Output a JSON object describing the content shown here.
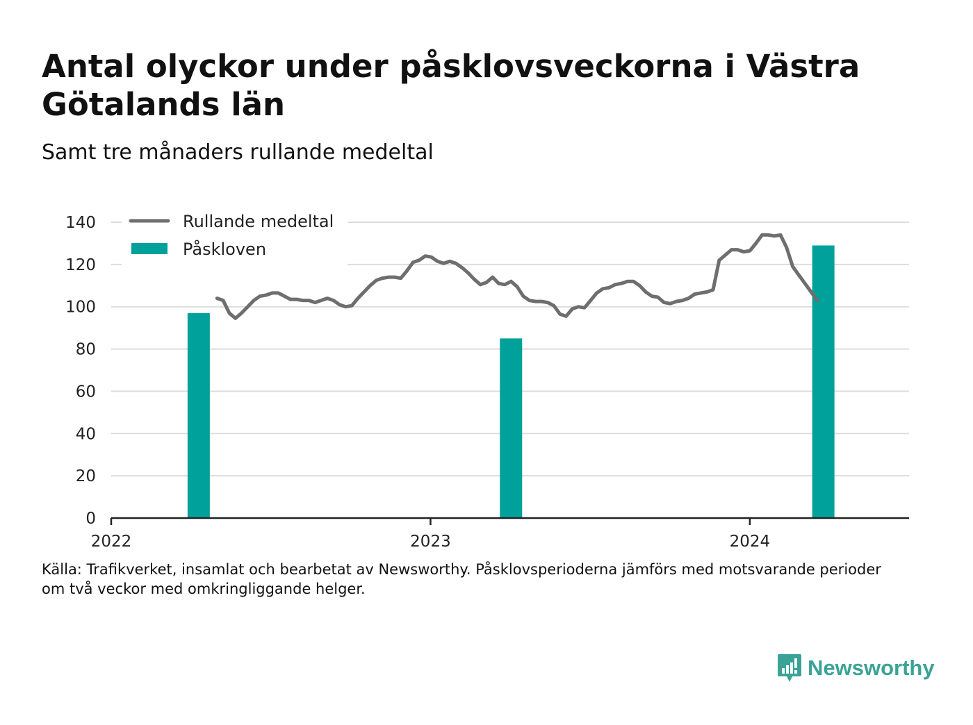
{
  "title": "Antal olyckor under påsklovsveckorna i Västra Götalands län",
  "subtitle": "Samt tre månaders rullande medeltal",
  "source": {
    "line1": "Källa: Trafikverket, insamlat och bearbetat av Newsworthy. Påsklovsperioderna jämförs med motsvarande perioder",
    "line2": "om två veckor med omkringliggande helger."
  },
  "logo": {
    "text": "Newsworthy",
    "icon": "newsworthy-logo-icon"
  },
  "colors": {
    "line": "#6e6e6e",
    "bar": "#00a19a",
    "grid": "#dddddd",
    "axis": "#222222",
    "brand": "#3aa396"
  },
  "chart_data": {
    "type": "bar+line",
    "title": "Antal olyckor under påsklovsveckorna i Västra Götalands län",
    "subtitle": "Samt tre månaders rullande medeltal",
    "xlabel": "",
    "ylabel": "",
    "ylim": [
      0,
      140
    ],
    "yticks": [
      0,
      20,
      40,
      60,
      80,
      100,
      120,
      140
    ],
    "xticks": [
      {
        "label": "2022",
        "x": "2022-01-01"
      },
      {
        "label": "2023",
        "x": "2023-01-01"
      },
      {
        "label": "2024",
        "x": "2024-01-01"
      }
    ],
    "grid": true,
    "legend": {
      "placement": "top-left",
      "entries": [
        {
          "label": "Rullande medeltal",
          "kind": "line"
        },
        {
          "label": "Påskloven",
          "kind": "bar"
        }
      ]
    },
    "bars": {
      "name": "Påskloven",
      "points": [
        {
          "x": "2022-04-11",
          "value": 97
        },
        {
          "x": "2023-04-03",
          "value": 85
        },
        {
          "x": "2024-03-25",
          "value": 129
        }
      ]
    },
    "line": {
      "name": "Rullande medeltal",
      "points": [
        [
          "2022-05-02",
          104
        ],
        [
          "2022-05-09",
          103
        ],
        [
          "2022-05-16",
          97
        ],
        [
          "2022-05-23",
          94.5
        ],
        [
          "2022-05-30",
          97
        ],
        [
          "2022-06-06",
          100
        ],
        [
          "2022-06-13",
          103
        ],
        [
          "2022-06-20",
          105
        ],
        [
          "2022-06-27",
          105.5
        ],
        [
          "2022-07-04",
          106.5
        ],
        [
          "2022-07-11",
          106.5
        ],
        [
          "2022-07-18",
          105
        ],
        [
          "2022-07-25",
          103.5
        ],
        [
          "2022-08-01",
          103.5
        ],
        [
          "2022-08-08",
          103
        ],
        [
          "2022-08-15",
          103
        ],
        [
          "2022-08-22",
          102
        ],
        [
          "2022-08-29",
          103
        ],
        [
          "2022-09-05",
          104
        ],
        [
          "2022-09-12",
          103
        ],
        [
          "2022-09-19",
          101
        ],
        [
          "2022-09-26",
          100
        ],
        [
          "2022-10-03",
          100.5
        ],
        [
          "2022-10-10",
          104
        ],
        [
          "2022-10-17",
          107
        ],
        [
          "2022-10-24",
          110
        ],
        [
          "2022-10-31",
          112.5
        ],
        [
          "2022-11-07",
          113.5
        ],
        [
          "2022-11-14",
          114
        ],
        [
          "2022-11-21",
          114
        ],
        [
          "2022-11-28",
          113.5
        ],
        [
          "2022-12-05",
          117
        ],
        [
          "2022-12-12",
          121
        ],
        [
          "2022-12-19",
          122
        ],
        [
          "2022-12-26",
          124
        ],
        [
          "2023-01-02",
          123.5
        ],
        [
          "2023-01-09",
          121.5
        ],
        [
          "2023-01-16",
          120.5
        ],
        [
          "2023-01-23",
          121.5
        ],
        [
          "2023-01-30",
          120.5
        ],
        [
          "2023-02-06",
          118.5
        ],
        [
          "2023-02-13",
          116
        ],
        [
          "2023-02-20",
          113
        ],
        [
          "2023-02-27",
          110.5
        ],
        [
          "2023-03-06",
          111.5
        ],
        [
          "2023-03-13",
          114
        ],
        [
          "2023-03-20",
          111
        ],
        [
          "2023-03-27",
          110.5
        ],
        [
          "2023-04-03",
          112
        ],
        [
          "2023-04-10",
          109.5
        ],
        [
          "2023-04-17",
          105
        ],
        [
          "2023-04-24",
          103
        ],
        [
          "2023-05-01",
          102.5
        ],
        [
          "2023-05-08",
          102.5
        ],
        [
          "2023-05-15",
          102
        ],
        [
          "2023-05-22",
          100.5
        ],
        [
          "2023-05-29",
          96.5
        ],
        [
          "2023-06-05",
          95.5
        ],
        [
          "2023-06-12",
          99
        ],
        [
          "2023-06-19",
          100
        ],
        [
          "2023-06-26",
          99.5
        ],
        [
          "2023-07-03",
          103
        ],
        [
          "2023-07-10",
          106.5
        ],
        [
          "2023-07-17",
          108.5
        ],
        [
          "2023-07-24",
          109
        ],
        [
          "2023-07-31",
          110.5
        ],
        [
          "2023-08-07",
          111
        ],
        [
          "2023-08-14",
          112
        ],
        [
          "2023-08-21",
          112
        ],
        [
          "2023-08-28",
          110
        ],
        [
          "2023-09-04",
          107
        ],
        [
          "2023-09-11",
          105
        ],
        [
          "2023-09-18",
          104.5
        ],
        [
          "2023-09-25",
          102
        ],
        [
          "2023-10-02",
          101.5
        ],
        [
          "2023-10-09",
          102.5
        ],
        [
          "2023-10-16",
          103
        ],
        [
          "2023-10-23",
          104
        ],
        [
          "2023-10-30",
          106
        ],
        [
          "2023-11-06",
          106.5
        ],
        [
          "2023-11-13",
          107
        ],
        [
          "2023-11-20",
          108
        ],
        [
          "2023-11-27",
          122
        ],
        [
          "2023-12-04",
          124.5
        ],
        [
          "2023-12-11",
          127
        ],
        [
          "2023-12-18",
          127
        ],
        [
          "2023-12-25",
          126
        ],
        [
          "2024-01-01",
          126.5
        ],
        [
          "2024-01-08",
          130
        ],
        [
          "2024-01-15",
          134
        ],
        [
          "2024-01-22",
          134
        ],
        [
          "2024-01-29",
          133.5
        ],
        [
          "2024-02-05",
          134
        ],
        [
          "2024-02-12",
          128
        ],
        [
          "2024-02-19",
          119
        ],
        [
          "2024-02-26",
          115
        ],
        [
          "2024-03-04",
          111
        ],
        [
          "2024-03-11",
          107
        ],
        [
          "2024-03-18",
          103
        ]
      ]
    }
  }
}
